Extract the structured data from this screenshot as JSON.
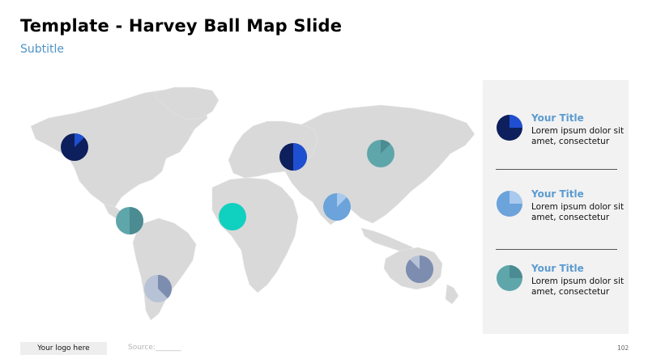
{
  "header": {
    "title": "Template - Harvey Ball Map Slide",
    "subtitle": "Subtitle"
  },
  "colors": {
    "navy": "#0d1f5c",
    "blue": "#1f4fd1",
    "teal": "#4a8c91",
    "teal_light": "#5fa6ab",
    "cyan": "#10d0c0",
    "sky": "#6ba3da",
    "sky_light": "#a9c9ee",
    "slate": "#7c8db0",
    "slate_light": "#b8c2d6",
    "map_gray": "#d9d9d9"
  },
  "map_balls": [
    {
      "name": "north-america",
      "fill_fraction": 0.875,
      "scheme": "navy-blue"
    },
    {
      "name": "central-america",
      "fill_fraction": 0.5,
      "scheme": "teal"
    },
    {
      "name": "south-america",
      "fill_fraction": 0.625,
      "scheme": "slate"
    },
    {
      "name": "west-africa",
      "fill_fraction": 1.0,
      "scheme": "cyan"
    },
    {
      "name": "europe",
      "fill_fraction": 0.5,
      "scheme": "navy-blue"
    },
    {
      "name": "india",
      "fill_fraction": 0.875,
      "scheme": "sky"
    },
    {
      "name": "east-asia",
      "fill_fraction": 0.875,
      "scheme": "teal"
    },
    {
      "name": "australia",
      "fill_fraction": 0.125,
      "scheme": "slate"
    }
  ],
  "legend": [
    {
      "title": "Your Title",
      "body": "Lorem ipsum dolor sit amet, consectetur",
      "fill_fraction": 0.75,
      "scheme": "navy-blue"
    },
    {
      "title": "Your Title",
      "body": "Lorem ipsum dolor sit amet, consectetur",
      "fill_fraction": 0.75,
      "scheme": "sky"
    },
    {
      "title": "Your Title",
      "body": "Lorem ipsum dolor sit amet, consectetur",
      "fill_fraction": 0.75,
      "scheme": "teal"
    }
  ],
  "footer": {
    "logo_text": "Your logo here",
    "source_text": "Source:_______",
    "page_number": "102"
  }
}
